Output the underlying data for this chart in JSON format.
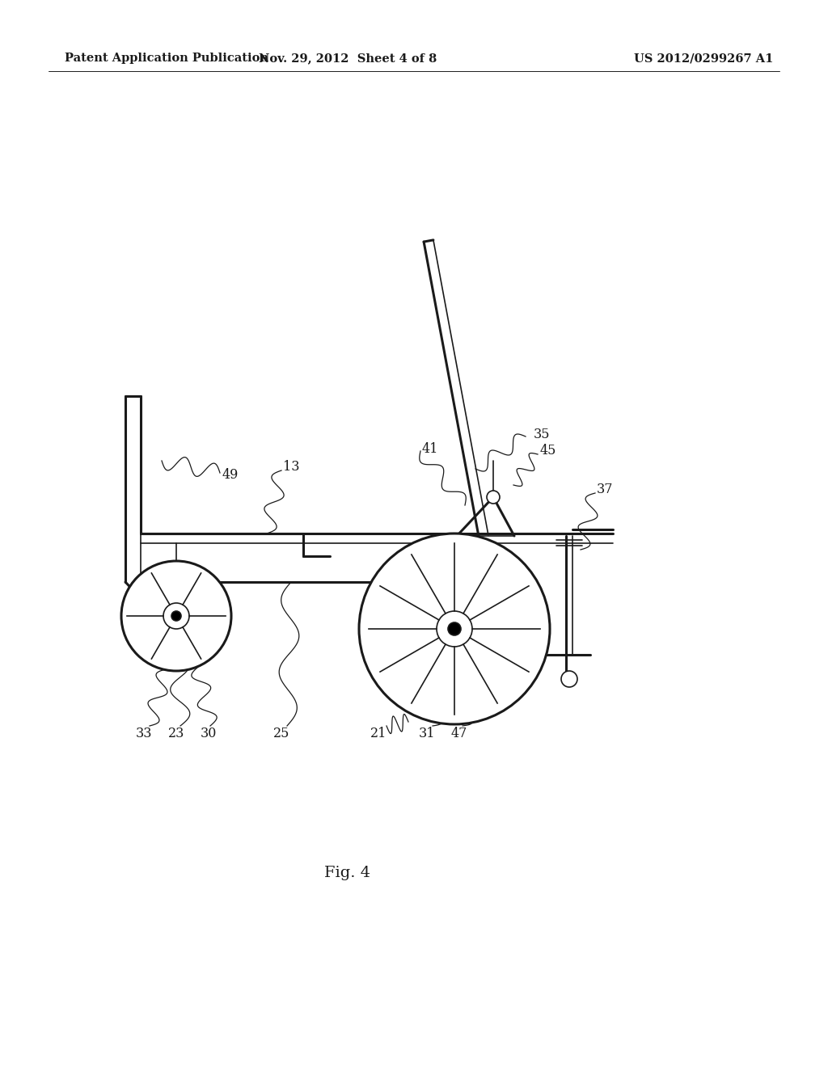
{
  "background_color": "#ffffff",
  "title_left": "Patent Application Publication",
  "title_center": "Nov. 29, 2012  Sheet 4 of 8",
  "title_right": "US 2012/0299267 A1",
  "fig_label": "Fig. 4",
  "header_fontsize": 10.5,
  "fig_label_fontsize": 14,
  "label_fontsize": 11.5,
  "line_color": "#1a1a1a",
  "line_width": 1.5
}
